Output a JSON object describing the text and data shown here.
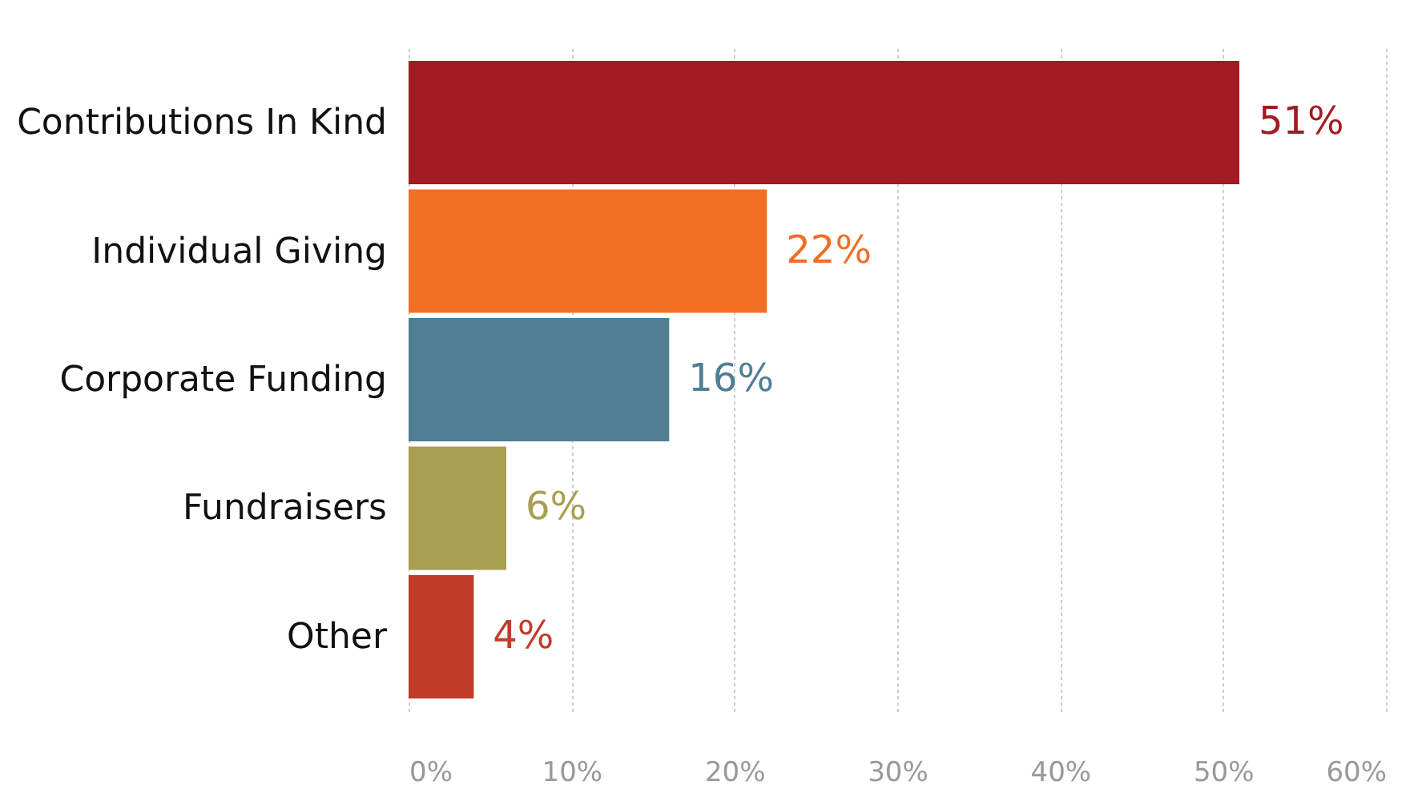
{
  "chart_data": {
    "type": "bar",
    "orientation": "horizontal",
    "categories": [
      "Contributions In Kind",
      "Individual Giving",
      "Corporate Funding",
      "Fundraisers",
      "Other"
    ],
    "values": [
      51,
      22,
      16,
      6,
      4
    ],
    "colors": [
      "#a31b22",
      "#f26f23",
      "#4f7f93",
      "#a89f52",
      "#c13c28"
    ],
    "value_labels": [
      "51%",
      "22%",
      "16%",
      "6%",
      "4%"
    ],
    "xlim": [
      0,
      60
    ],
    "xticks": [
      {
        "value": 0,
        "label": "0%"
      },
      {
        "value": 10,
        "label": "10%"
      },
      {
        "value": 20,
        "label": "20%"
      },
      {
        "value": 30,
        "label": "30%"
      },
      {
        "value": 40,
        "label": "40%"
      },
      {
        "value": 50,
        "label": "50%"
      },
      {
        "value": 60,
        "label": "60%"
      }
    ],
    "grid": "x"
  }
}
